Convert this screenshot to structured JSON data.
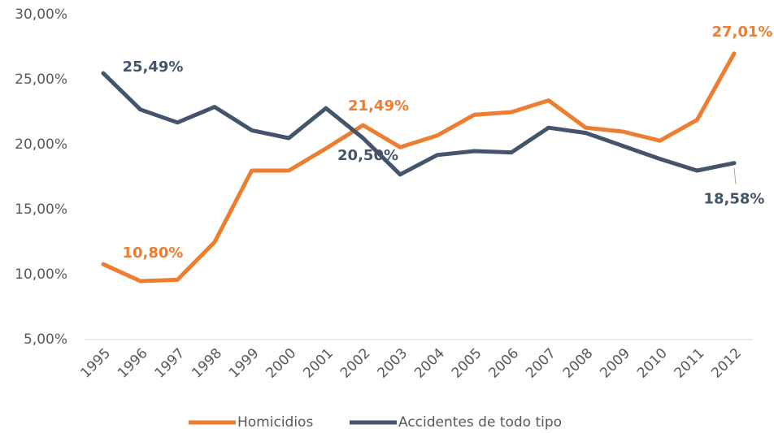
{
  "chart_data": {
    "type": "line",
    "categories": [
      "1995",
      "1996",
      "1997",
      "1998",
      "1999",
      "2000",
      "2001",
      "2002",
      "2003",
      "2004",
      "2005",
      "2006",
      "2007",
      "2008",
      "2009",
      "2010",
      "2011",
      "2012"
    ],
    "series": [
      {
        "name": "Homicidios",
        "color": "#ed7d31",
        "values": [
          10.8,
          9.5,
          9.6,
          12.5,
          18.0,
          18.0,
          19.7,
          21.49,
          19.8,
          20.7,
          22.3,
          22.5,
          23.4,
          21.3,
          21.0,
          20.3,
          21.9,
          27.01
        ],
        "value_labels": [
          "10,80%",
          null,
          null,
          null,
          null,
          null,
          null,
          "21,49%",
          null,
          null,
          null,
          null,
          null,
          null,
          null,
          null,
          null,
          "27,01%"
        ]
      },
      {
        "name": "Accidentes de todo tipo",
        "color": "#44546a",
        "values": [
          25.49,
          22.7,
          21.7,
          22.9,
          21.1,
          20.5,
          22.8,
          20.5,
          17.7,
          19.2,
          19.5,
          19.4,
          21.3,
          20.9,
          19.9,
          18.9,
          18.0,
          18.58
        ],
        "value_labels": [
          "25,49%",
          null,
          null,
          null,
          null,
          null,
          null,
          "20,50%",
          null,
          null,
          null,
          null,
          null,
          null,
          null,
          null,
          null,
          "18,58%"
        ]
      }
    ],
    "ylim": [
      5,
      30
    ],
    "yticks": [
      {
        "value": 5,
        "label": "5,00%"
      },
      {
        "value": 10,
        "label": "10,00%"
      },
      {
        "value": 15,
        "label": "15,00%"
      },
      {
        "value": 20,
        "label": "20,00%"
      },
      {
        "value": 25,
        "label": "25,00%"
      },
      {
        "value": 30,
        "label": "30,00%"
      }
    ],
    "grid": false,
    "legend": "bottom"
  }
}
